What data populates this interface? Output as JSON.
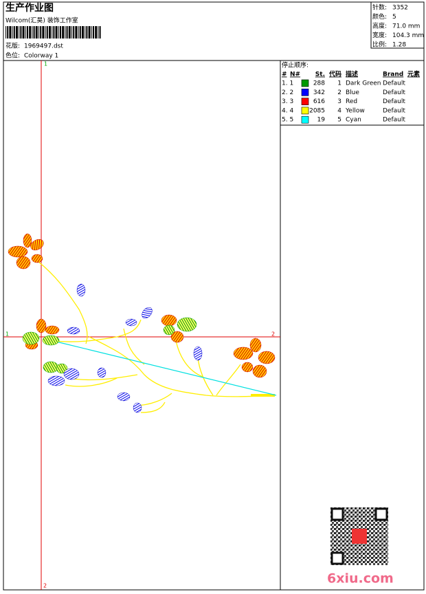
{
  "header": {
    "title": "生产作业图",
    "subtitle": "Wilcom(汇昊) 装饰工作室",
    "design_label": "花版:",
    "design": "1969497.dst",
    "colorway_label": "色位:",
    "colorway": "Colorway 1"
  },
  "info": [
    {
      "label": "针数:",
      "value": "3352"
    },
    {
      "label": "颜色:",
      "value": "5"
    },
    {
      "label": "高度:",
      "value": "71.0 mm"
    },
    {
      "label": "宽度:",
      "value": "104.3 mm"
    },
    {
      "label": "比例:",
      "value": "1.28"
    }
  ],
  "stop_sequence": {
    "title": "停止顺序:",
    "columns": [
      "#",
      "N#",
      "St.",
      "代码",
      "描述",
      "Brand",
      "元素"
    ],
    "rows": [
      {
        "seq": "1. 1",
        "color": "#009900",
        "stitches": 288,
        "code": 1,
        "description": "Dark Green",
        "brand": "Default"
      },
      {
        "seq": "2. 2",
        "color": "#0000ff",
        "stitches": 342,
        "code": 2,
        "description": "Blue",
        "brand": "Default"
      },
      {
        "seq": "3. 3",
        "color": "#ff0000",
        "stitches": 616,
        "code": 3,
        "description": "Red",
        "brand": "Default"
      },
      {
        "seq": "4. 4",
        "color": "#ffff00",
        "stitches": 2085,
        "code": 4,
        "description": "Yellow",
        "brand": "Default"
      },
      {
        "seq": "5. 5",
        "color": "#00ffff",
        "stitches": 19,
        "code": 5,
        "description": "Cyan",
        "brand": "Default"
      }
    ]
  },
  "axis_labels": {
    "top": "1",
    "left": "1",
    "right": "2",
    "bottom": "2"
  },
  "watermark": "6xiu.com"
}
